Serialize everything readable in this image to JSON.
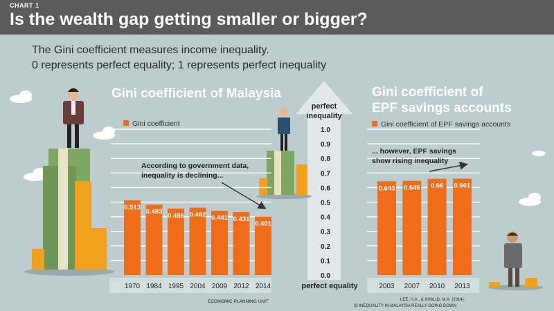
{
  "header": {
    "chart_label": "CHART 1",
    "title": "Is the wealth gap getting smaller or bigger?"
  },
  "intro": {
    "line1": "The Gini coefficient measures income inequality.",
    "line2": "0 represents perfect equality; 1 represents perfect inequality"
  },
  "scale": {
    "top_label_1": "perfect",
    "top_label_2": "inequality",
    "bottom_label": "perfect equality"
  },
  "colors": {
    "bar": "#ef6d1a",
    "header_bg": "#5b5b5b",
    "background": "#bccccf",
    "category_band": "#d4dee0"
  },
  "chart_data": [
    {
      "type": "bar",
      "title": "Gini coefficient of Malaysia",
      "legend": "Gini coefficient",
      "annotation_1": "According to government data,",
      "annotation_2": "inequality is declining...",
      "source": "ECONOMIC PLANNING UNIT",
      "categories": [
        "1970",
        "1984",
        "1995",
        "2004",
        "2009",
        "2012",
        "2014"
      ],
      "values": [
        0.513,
        0.483,
        0.456,
        0.462,
        0.441,
        0.431,
        0.401
      ],
      "value_labels": [
        "0.513",
        "0.483",
        "0.456",
        "0.462",
        "0.441",
        "0.431",
        "0.401"
      ],
      "ylim": [
        0,
        1
      ],
      "y_ticks": [
        "0.0",
        "0.1",
        "0.2",
        "0.3",
        "0.4",
        "0.5",
        "0.6",
        "0.7",
        "0.8",
        "0.9",
        "1.0"
      ],
      "grid": true
    },
    {
      "type": "bar",
      "title_line1": "Gini coefficient of",
      "title_line2": "EPF savings accounts",
      "legend": "Gini coefficient of EPF savings accounts",
      "annotation_1": "... however, EPF savings",
      "annotation_2": "show rising inequality",
      "source_1": "LEE, H.A., & KHALID, M.A. (2014).",
      "source_2": "IS INEQUALITY IN MALAYSIA REALLY GOING DOWN",
      "categories": [
        "2003",
        "2007",
        "2010",
        "2013"
      ],
      "values": [
        0.643,
        0.646,
        0.66,
        0.661
      ],
      "value_labels": [
        "0.643",
        "0.646",
        "0.66",
        "0.661"
      ],
      "ylim": [
        0,
        1
      ],
      "grid": true
    }
  ]
}
